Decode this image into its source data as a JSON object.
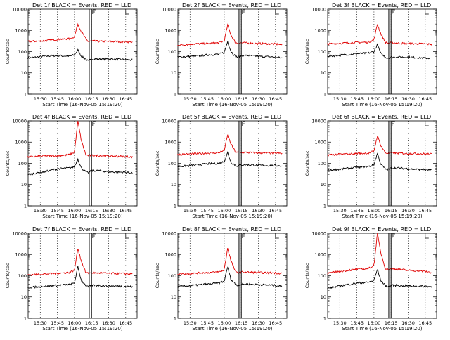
{
  "ylabel": "Counts/sec",
  "xlabel": "Start Time (16-Nov-05 15:19:20)",
  "legend_text": "BLACK = Events, RED = LLD",
  "colors": {
    "events": "#000000",
    "lld": "#e00000",
    "axes": "#000000",
    "background": "#ffffff"
  },
  "y_ticks": [
    {
      "value": 1,
      "label": "1"
    },
    {
      "value": 10,
      "label": "10"
    },
    {
      "value": 100,
      "label": "100"
    },
    {
      "value": 1000,
      "label": "1000"
    },
    {
      "value": 10000,
      "label": "10000"
    }
  ],
  "chart_data": [
    {
      "type": "line",
      "title": "Det 1f BLACK = Events, RED = LLD",
      "x_ticks": [
        "15:30",
        "15:45",
        "16:00",
        "16:15",
        "16:30",
        "16:45"
      ],
      "ylim": [
        1,
        10000
      ],
      "y_scale": "log",
      "series": [
        {
          "name": "Events",
          "x": [
            "15:19",
            "15:33",
            "15:45",
            "15:55",
            "16:00",
            "16:03",
            "16:06",
            "16:10",
            "16:12",
            "16:15",
            "16:22",
            "16:30",
            "16:45",
            "16:51"
          ],
          "values": [
            50,
            60,
            65,
            60,
            70,
            120,
            60,
            45,
            35,
            45,
            45,
            45,
            42,
            40
          ]
        },
        {
          "name": "LLD",
          "x": [
            "15:19",
            "15:33",
            "15:45",
            "15:55",
            "16:00",
            "16:03",
            "16:06",
            "16:10",
            "16:12",
            "16:15",
            "16:22",
            "16:30",
            "16:45",
            "16:51"
          ],
          "values": [
            300,
            320,
            380,
            400,
            500,
            2000,
            900,
            400,
            300,
            320,
            300,
            300,
            290,
            280
          ]
        }
      ]
    },
    {
      "type": "line",
      "title": "Det 2f BLACK = Events, RED = LLD",
      "x_ticks": [
        "15:30",
        "15:45",
        "16:00",
        "16:15",
        "16:30",
        "16:45"
      ],
      "ylim": [
        1,
        10000
      ],
      "y_scale": "log",
      "series": [
        {
          "name": "Events",
          "x": [
            "15:19",
            "15:33",
            "15:45",
            "15:55",
            "16:00",
            "16:03",
            "16:06",
            "16:10",
            "16:12",
            "16:15",
            "16:22",
            "16:30",
            "16:45",
            "16:51"
          ],
          "values": [
            55,
            60,
            70,
            75,
            90,
            300,
            100,
            60,
            55,
            65,
            65,
            60,
            55,
            50
          ]
        },
        {
          "name": "LLD",
          "x": [
            "15:19",
            "15:33",
            "15:45",
            "15:55",
            "16:00",
            "16:03",
            "16:06",
            "16:10",
            "16:12",
            "16:15",
            "16:22",
            "16:30",
            "16:45",
            "16:51"
          ],
          "values": [
            200,
            230,
            240,
            260,
            320,
            1800,
            600,
            260,
            250,
            260,
            250,
            240,
            230,
            210
          ]
        }
      ]
    },
    {
      "type": "line",
      "title": "Det 3f BLACK = Events, RED = LLD",
      "x_ticks": [
        "15:30",
        "15:45",
        "16:00",
        "16:15",
        "16:30",
        "16:45"
      ],
      "ylim": [
        1,
        10000
      ],
      "y_scale": "log",
      "series": [
        {
          "name": "Events",
          "x": [
            "15:19",
            "15:33",
            "15:45",
            "15:55",
            "16:00",
            "16:03",
            "16:06",
            "16:10",
            "16:12",
            "16:15",
            "16:22",
            "16:30",
            "16:45",
            "16:51"
          ],
          "values": [
            60,
            70,
            80,
            85,
            100,
            220,
            80,
            55,
            50,
            55,
            55,
            55,
            50,
            48
          ]
        },
        {
          "name": "LLD",
          "x": [
            "15:19",
            "15:33",
            "15:45",
            "15:55",
            "16:00",
            "16:03",
            "16:06",
            "16:10",
            "16:12",
            "16:15",
            "16:22",
            "16:30",
            "16:45",
            "16:51"
          ],
          "values": [
            230,
            250,
            270,
            280,
            360,
            2000,
            700,
            270,
            250,
            260,
            250,
            240,
            230,
            220
          ]
        }
      ]
    },
    {
      "type": "line",
      "title": "Det 4f BLACK = Events, RED = LLD",
      "x_ticks": [
        "15:30",
        "15:45",
        "16:00",
        "16:15",
        "16:30",
        "16:45"
      ],
      "ylim": [
        1,
        10000
      ],
      "y_scale": "log",
      "series": [
        {
          "name": "Events",
          "x": [
            "15:19",
            "15:33",
            "15:45",
            "15:55",
            "16:00",
            "16:03",
            "16:06",
            "16:10",
            "16:12",
            "16:15",
            "16:22",
            "16:30",
            "16:45",
            "16:51"
          ],
          "values": [
            30,
            40,
            55,
            60,
            70,
            160,
            60,
            40,
            35,
            45,
            45,
            40,
            38,
            35
          ]
        },
        {
          "name": "LLD",
          "x": [
            "15:19",
            "15:33",
            "15:45",
            "15:55",
            "16:00",
            "16:03",
            "16:06",
            "16:10",
            "16:12",
            "16:15",
            "16:22",
            "16:30",
            "16:45",
            "16:51"
          ],
          "values": [
            200,
            220,
            230,
            250,
            330,
            10000,
            1200,
            250,
            230,
            240,
            230,
            220,
            210,
            200
          ]
        }
      ]
    },
    {
      "type": "line",
      "title": "Det 5f BLACK = Events, RED = LLD",
      "x_ticks": [
        "15:30",
        "15:45",
        "16:00",
        "16:15",
        "16:30",
        "16:45"
      ],
      "ylim": [
        1,
        10000
      ],
      "y_scale": "log",
      "series": [
        {
          "name": "Events",
          "x": [
            "15:19",
            "15:33",
            "15:45",
            "15:55",
            "16:00",
            "16:03",
            "16:06",
            "16:10",
            "16:12",
            "16:15",
            "16:22",
            "16:30",
            "16:45",
            "16:51"
          ],
          "values": [
            70,
            80,
            95,
            100,
            120,
            320,
            110,
            80,
            75,
            85,
            85,
            80,
            78,
            75
          ]
        },
        {
          "name": "LLD",
          "x": [
            "15:19",
            "15:33",
            "15:45",
            "15:55",
            "16:00",
            "16:03",
            "16:06",
            "16:10",
            "16:12",
            "16:15",
            "16:22",
            "16:30",
            "16:45",
            "16:51"
          ],
          "values": [
            260,
            280,
            300,
            320,
            400,
            2100,
            800,
            330,
            320,
            330,
            320,
            310,
            300,
            290
          ]
        }
      ]
    },
    {
      "type": "line",
      "title": "Det 6f BLACK = Events, RED = LLD",
      "x_ticks": [
        "15:30",
        "15:45",
        "16:00",
        "16:15",
        "16:30",
        "16:45"
      ],
      "ylim": [
        1,
        10000
      ],
      "y_scale": "log",
      "series": [
        {
          "name": "Events",
          "x": [
            "15:19",
            "15:33",
            "15:45",
            "15:55",
            "16:00",
            "16:03",
            "16:06",
            "16:10",
            "16:12",
            "16:15",
            "16:22",
            "16:30",
            "16:45",
            "16:51"
          ],
          "values": [
            45,
            55,
            65,
            70,
            85,
            300,
            90,
            55,
            50,
            60,
            60,
            55,
            50,
            48
          ]
        },
        {
          "name": "LLD",
          "x": [
            "15:19",
            "15:33",
            "15:45",
            "15:55",
            "16:00",
            "16:03",
            "16:06",
            "16:10",
            "16:12",
            "16:15",
            "16:22",
            "16:30",
            "16:45",
            "16:51"
          ],
          "values": [
            250,
            270,
            290,
            300,
            380,
            2000,
            700,
            310,
            300,
            310,
            300,
            290,
            280,
            270
          ]
        }
      ]
    },
    {
      "type": "line",
      "title": "Det 7f BLACK = Events, RED = LLD",
      "x_ticks": [
        "15:30",
        "15:45",
        "16:00",
        "16:15",
        "16:30",
        "16:45"
      ],
      "ylim": [
        1,
        10000
      ],
      "y_scale": "log",
      "series": [
        {
          "name": "Events",
          "x": [
            "15:19",
            "15:33",
            "15:45",
            "15:55",
            "16:00",
            "16:03",
            "16:06",
            "16:10",
            "16:12",
            "16:15",
            "16:22",
            "16:30",
            "16:45",
            "16:51"
          ],
          "values": [
            28,
            32,
            35,
            38,
            45,
            260,
            60,
            35,
            30,
            35,
            35,
            33,
            32,
            30
          ]
        },
        {
          "name": "LLD",
          "x": [
            "15:19",
            "15:33",
            "15:45",
            "15:55",
            "16:00",
            "16:03",
            "16:06",
            "16:10",
            "16:12",
            "16:15",
            "16:22",
            "16:30",
            "16:45",
            "16:51"
          ],
          "values": [
            110,
            120,
            130,
            140,
            180,
            2000,
            500,
            140,
            130,
            140,
            135,
            130,
            125,
            120
          ]
        }
      ]
    },
    {
      "type": "line",
      "title": "Det 8f BLACK = Events, RED = LLD",
      "x_ticks": [
        "15:30",
        "15:45",
        "16:00",
        "16:15",
        "16:30",
        "16:45"
      ],
      "ylim": [
        1,
        10000
      ],
      "y_scale": "log",
      "series": [
        {
          "name": "Events",
          "x": [
            "15:19",
            "15:33",
            "15:45",
            "15:55",
            "16:00",
            "16:03",
            "16:06",
            "16:10",
            "16:12",
            "16:15",
            "16:22",
            "16:30",
            "16:45",
            "16:51"
          ],
          "values": [
            30,
            35,
            40,
            45,
            55,
            260,
            65,
            40,
            35,
            40,
            40,
            38,
            35,
            32
          ]
        },
        {
          "name": "LLD",
          "x": [
            "15:19",
            "15:33",
            "15:45",
            "15:55",
            "16:00",
            "16:03",
            "16:06",
            "16:10",
            "16:12",
            "16:15",
            "16:22",
            "16:30",
            "16:45",
            "16:51"
          ],
          "values": [
            120,
            130,
            140,
            150,
            190,
            2000,
            500,
            150,
            140,
            150,
            145,
            140,
            135,
            130
          ]
        }
      ]
    },
    {
      "type": "line",
      "title": "Det 9f BLACK = Events, RED = LLD",
      "x_ticks": [
        "15:30",
        "15:45",
        "16:00",
        "16:15",
        "16:30",
        "16:45"
      ],
      "ylim": [
        1,
        10000
      ],
      "y_scale": "log",
      "series": [
        {
          "name": "Events",
          "x": [
            "15:19",
            "15:33",
            "15:45",
            "15:55",
            "16:00",
            "16:03",
            "16:06",
            "16:10",
            "16:12",
            "16:15",
            "16:22",
            "16:30",
            "16:45",
            "16:51"
          ],
          "values": [
            25,
            35,
            45,
            50,
            60,
            200,
            60,
            35,
            30,
            35,
            35,
            33,
            32,
            30
          ]
        },
        {
          "name": "LLD",
          "x": [
            "15:19",
            "15:33",
            "15:45",
            "15:55",
            "16:00",
            "16:03",
            "16:06",
            "16:10",
            "16:12",
            "16:15",
            "16:22",
            "16:30",
            "16:45",
            "16:51"
          ],
          "values": [
            130,
            170,
            200,
            220,
            300,
            10000,
            1200,
            220,
            200,
            210,
            200,
            180,
            160,
            140
          ]
        }
      ]
    }
  ]
}
